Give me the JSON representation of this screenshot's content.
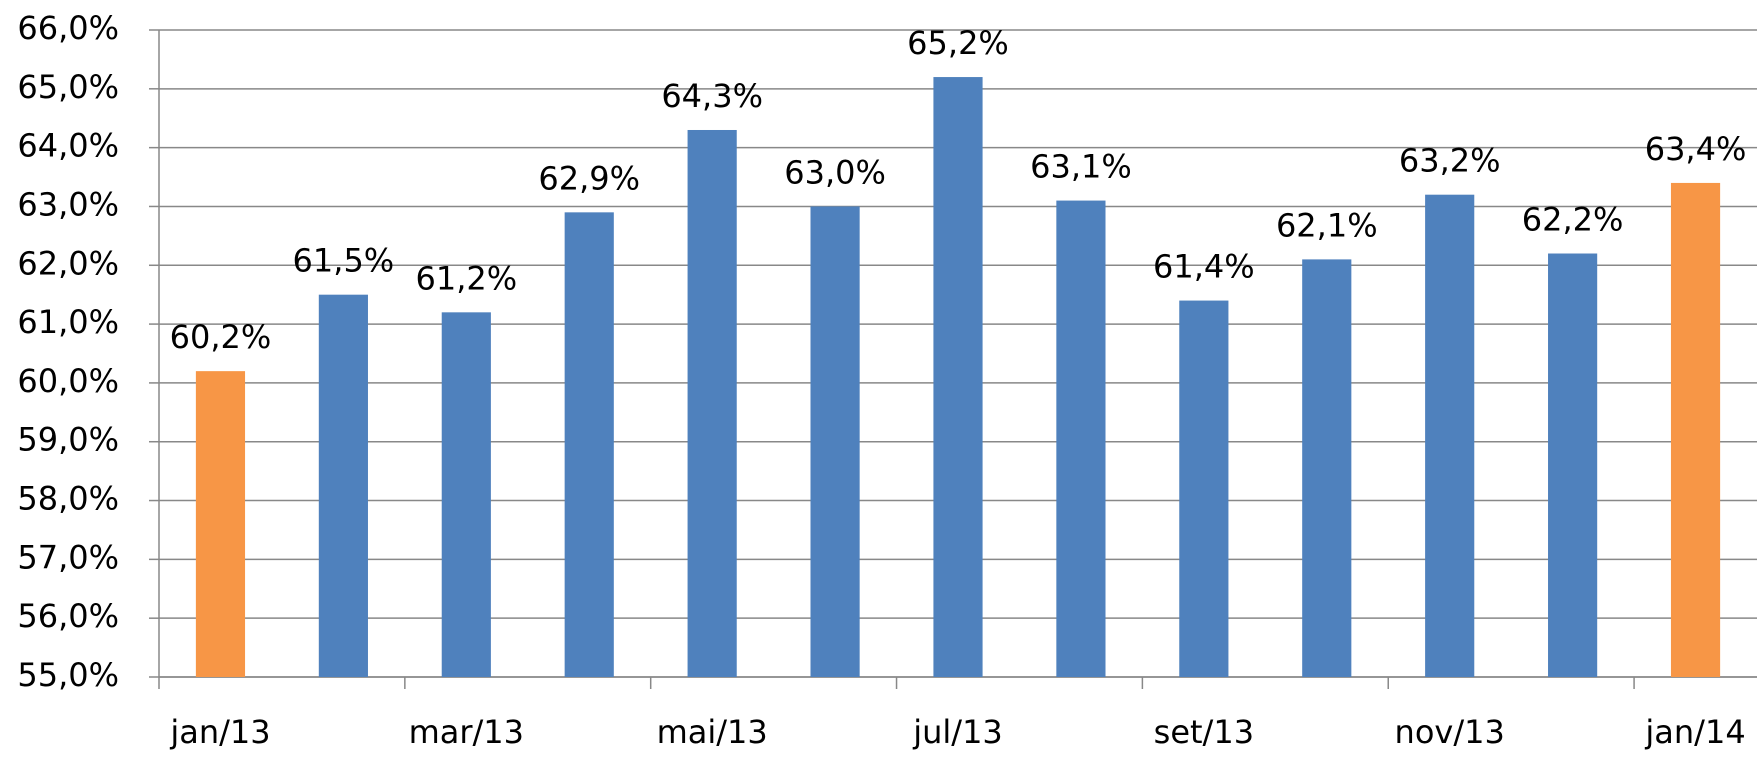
{
  "chart_data": {
    "type": "bar",
    "categories": [
      "jan/13",
      null,
      "mar/13",
      null,
      "mai/13",
      null,
      "jul/13",
      null,
      "set/13",
      null,
      "nov/13",
      null,
      "jan/14"
    ],
    "values": [
      60.2,
      61.5,
      61.2,
      62.9,
      64.3,
      63.0,
      65.2,
      63.1,
      61.4,
      62.1,
      63.2,
      62.2,
      63.4
    ],
    "value_labels": [
      "60,2%",
      "61,5%",
      "61,2%",
      "62,9%",
      "64,3%",
      "63,0%",
      "65,2%",
      "63,1%",
      "61,4%",
      "62,1%",
      "63,2%",
      "62,2%",
      "63,4%"
    ],
    "colors": [
      "#f79646",
      "#4f81bd",
      "#4f81bd",
      "#4f81bd",
      "#4f81bd",
      "#4f81bd",
      "#4f81bd",
      "#4f81bd",
      "#4f81bd",
      "#4f81bd",
      "#4f81bd",
      "#4f81bd",
      "#f79646"
    ],
    "ylim": [
      55,
      66
    ],
    "yticks": [
      {
        "value": 55,
        "label": "55,0%"
      },
      {
        "value": 56,
        "label": "56,0%"
      },
      {
        "value": 57,
        "label": "57,0%"
      },
      {
        "value": 58,
        "label": "58,0%"
      },
      {
        "value": 59,
        "label": "59,0%"
      },
      {
        "value": 60,
        "label": "60,0%"
      },
      {
        "value": 61,
        "label": "61,0%"
      },
      {
        "value": 62,
        "label": "62,0%"
      },
      {
        "value": 63,
        "label": "63,0%"
      },
      {
        "value": 64,
        "label": "64,0%"
      },
      {
        "value": 65,
        "label": "65,0%"
      },
      {
        "value": 66,
        "label": "66,0%"
      }
    ],
    "grid": true
  }
}
